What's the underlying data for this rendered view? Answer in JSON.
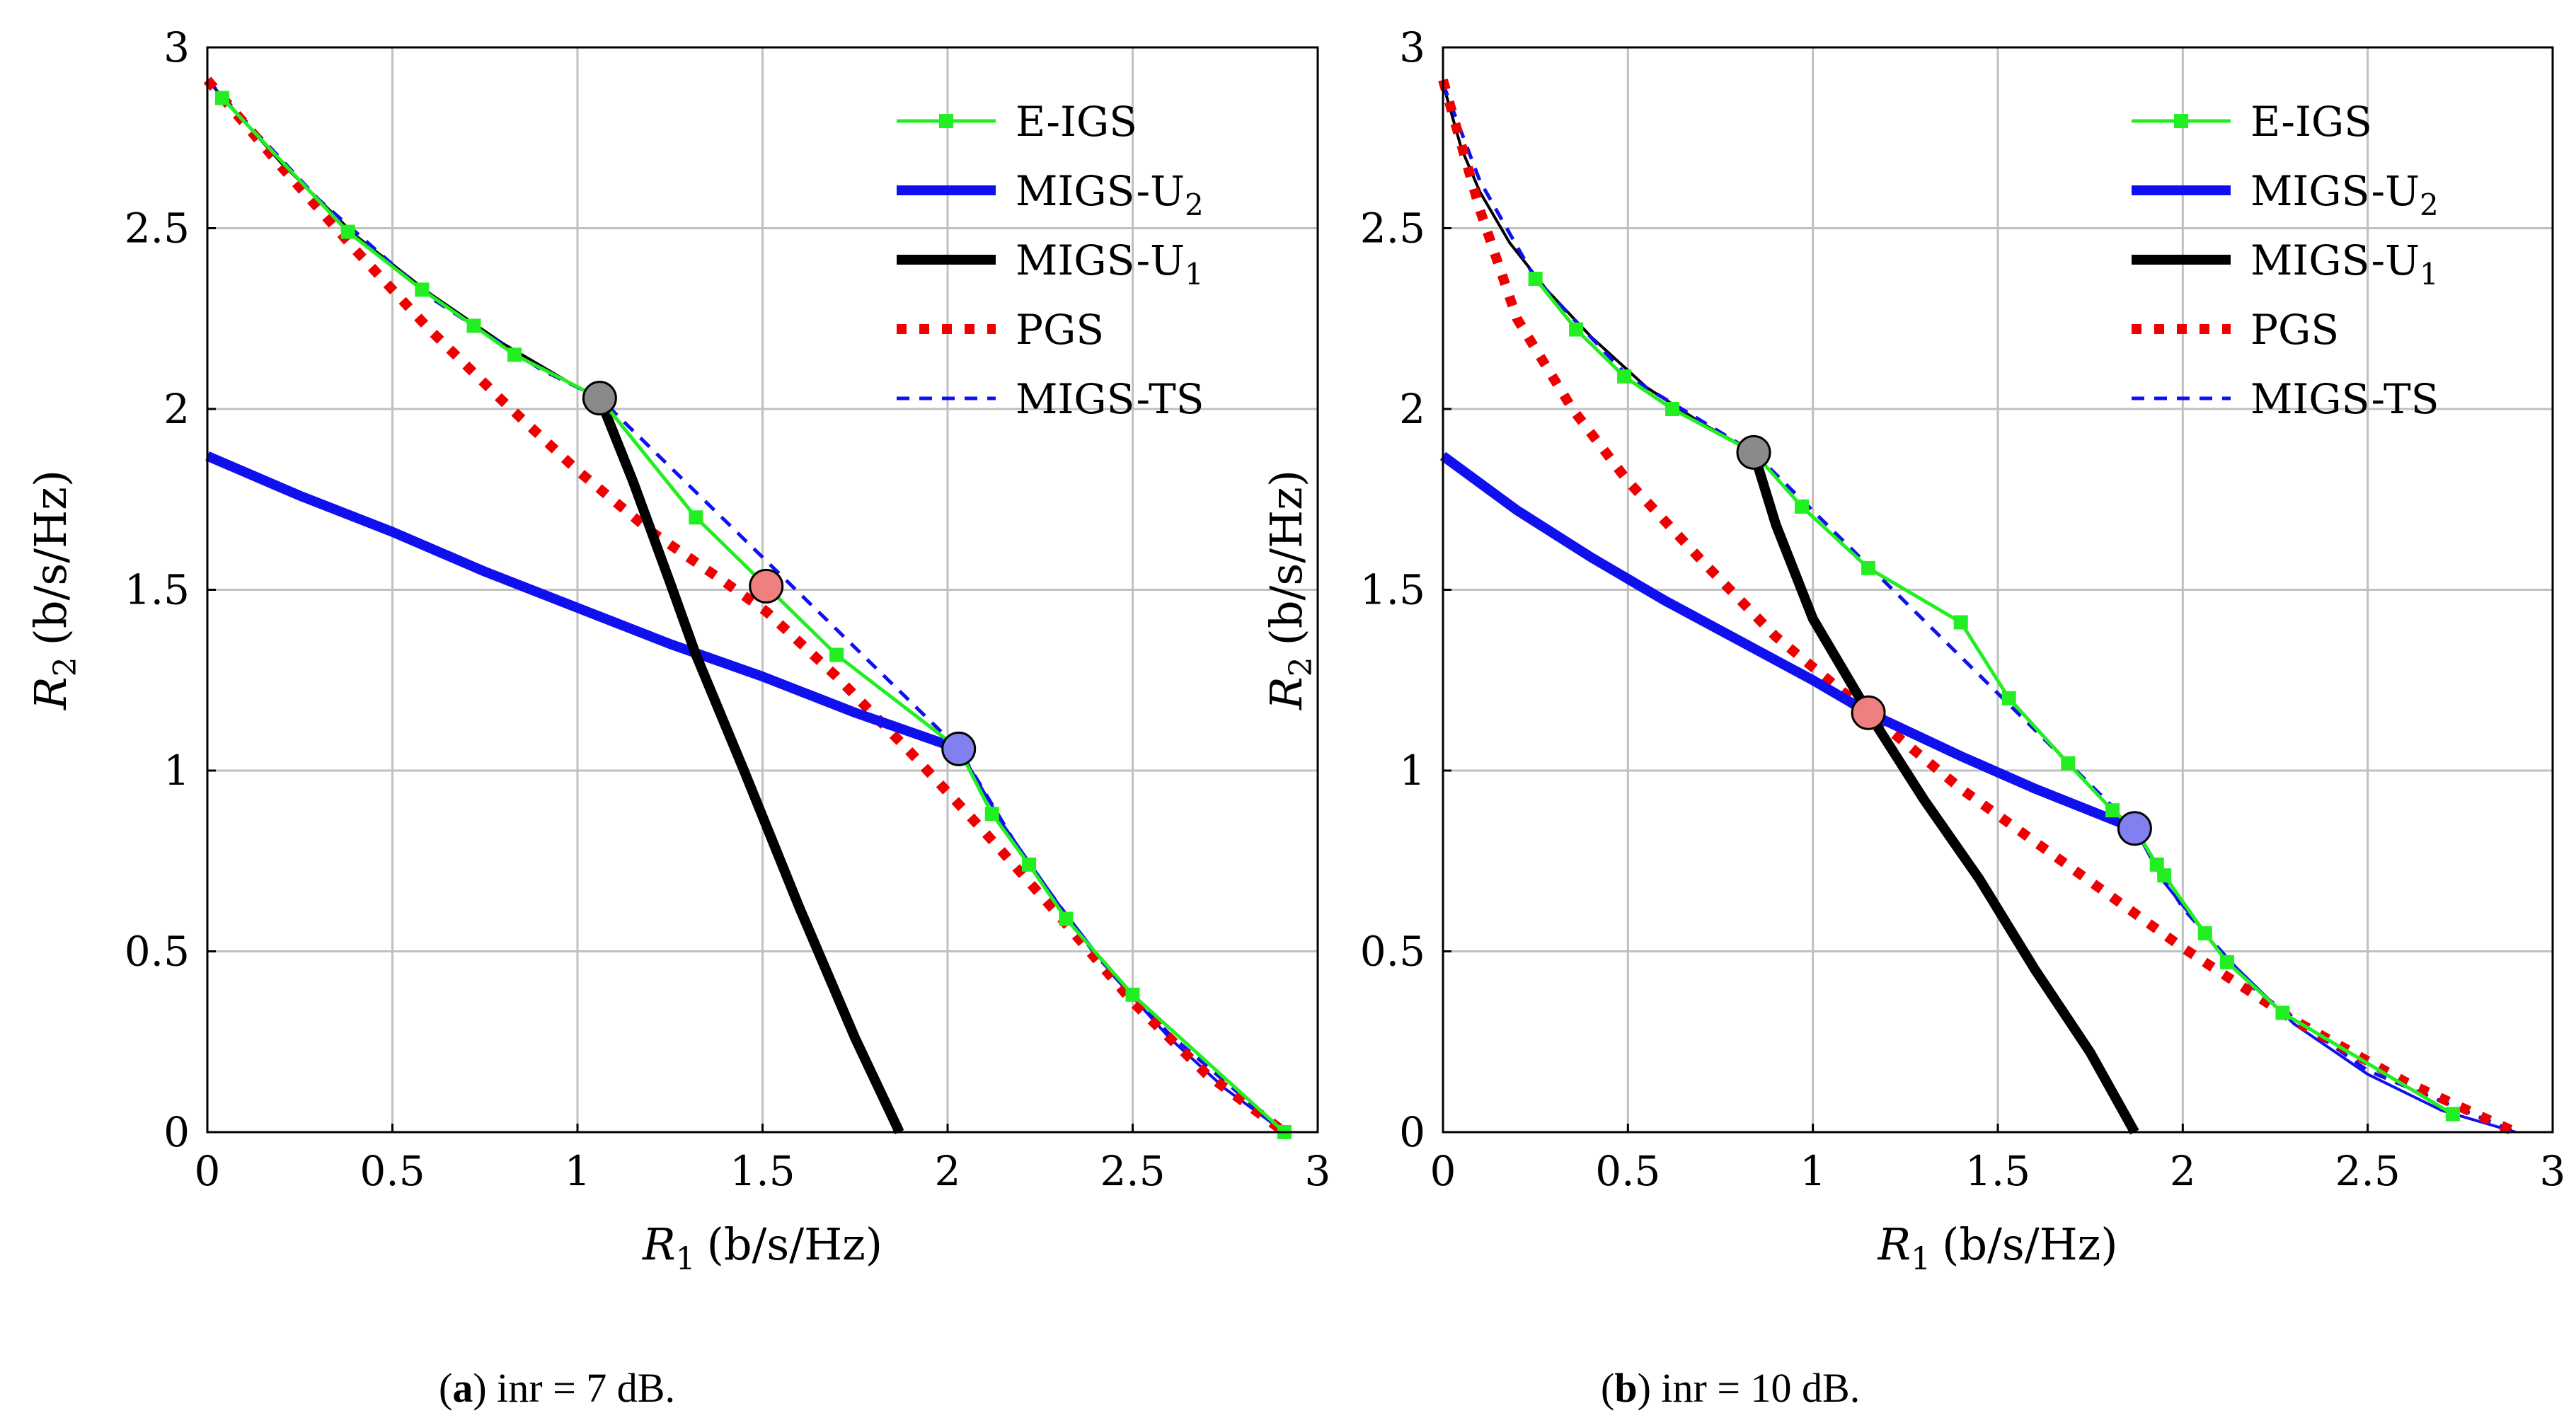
{
  "chart_data": [
    {
      "type": "line",
      "panel_label": "a",
      "caption": "inr = 7 dB.",
      "xlabel_main": "R",
      "xlabel_sub": "1",
      "xlabel_unit": "(b/s/Hz)",
      "ylabel_main": "R",
      "ylabel_sub": "2",
      "ylabel_unit": "(b/s/Hz)",
      "xlim": [
        0,
        3
      ],
      "ylim": [
        0,
        3
      ],
      "xticks": [
        0,
        0.5,
        1,
        1.5,
        2,
        2.5,
        3
      ],
      "yticks": [
        0,
        0.5,
        1,
        1.5,
        2,
        2.5,
        3
      ],
      "xtick_labels": [
        "0",
        "0.5",
        "1",
        "1.5",
        "2",
        "2.5",
        "3"
      ],
      "ytick_labels": [
        "0",
        "0.5",
        "1",
        "1.5",
        "2",
        "2.5",
        "3"
      ],
      "grid": true,
      "legend_position": "top-right",
      "series": [
        {
          "name": "E-IGS",
          "label_main": "E-IGS",
          "label_sub": "",
          "color": "#22ee22",
          "style": "line-square-markers",
          "x": [
            0.04,
            0.38,
            0.58,
            0.72,
            0.83,
            1.06,
            1.32,
            1.7,
            2.03,
            2.12,
            2.22,
            2.32,
            2.5,
            2.91
          ],
          "y": [
            2.86,
            2.49,
            2.33,
            2.23,
            2.15,
            2.03,
            1.7,
            1.32,
            1.06,
            0.88,
            0.74,
            0.59,
            0.38,
            0.0
          ]
        },
        {
          "name": "MIGS-U2",
          "label_main": "MIGS-U",
          "label_sub": "2",
          "color": "#1010ee",
          "style": "thick",
          "x": [
            0,
            0.25,
            0.5,
            0.75,
            1.0,
            1.25,
            1.5,
            1.75,
            2.03
          ],
          "y": [
            1.87,
            1.76,
            1.66,
            1.55,
            1.45,
            1.35,
            1.26,
            1.16,
            1.06
          ]
        },
        {
          "name": "MIGS-U1",
          "label_main": "MIGS-U",
          "label_sub": "1",
          "color": "#000000",
          "style": "thick",
          "x": [
            1.06,
            1.15,
            1.25,
            1.32,
            1.45,
            1.6,
            1.75,
            1.87
          ],
          "y": [
            2.03,
            1.8,
            1.52,
            1.32,
            1.0,
            0.62,
            0.26,
            0.0
          ]
        },
        {
          "name": "PGS",
          "label_main": "PGS",
          "label_sub": "",
          "color": "#ee0000",
          "style": "thick-dotted",
          "x": [
            0,
            0.2,
            0.4,
            0.6,
            0.8,
            1.0,
            1.2,
            1.4,
            1.51,
            1.7,
            1.9,
            2.1,
            2.3,
            2.5,
            2.7,
            2.91
          ],
          "y": [
            2.91,
            2.67,
            2.44,
            2.22,
            2.02,
            1.83,
            1.66,
            1.52,
            1.44,
            1.26,
            1.05,
            0.83,
            0.6,
            0.36,
            0.16,
            0.0
          ]
        },
        {
          "name": "MIGS-TS",
          "label_main": "MIGS-TS",
          "label_sub": "",
          "color": "#1010ee",
          "style": "dashed",
          "x": [
            0,
            0.3,
            0.6,
            0.9,
            1.06,
            2.03,
            2.2,
            2.4,
            2.6,
            2.91
          ],
          "y": [
            2.91,
            2.58,
            2.31,
            2.11,
            2.03,
            1.06,
            0.77,
            0.49,
            0.27,
            0.0
          ]
        },
        {
          "name": "MIGS-U1-upper",
          "label_main": "",
          "label_sub": "",
          "color": "#000000",
          "style": "boundary",
          "legend": false,
          "x": [
            0,
            0.2,
            0.4,
            0.6,
            0.8,
            1.0,
            1.06
          ],
          "y": [
            2.91,
            2.68,
            2.48,
            2.32,
            2.18,
            2.06,
            2.03
          ]
        },
        {
          "name": "MIGS-U2-lower",
          "label_main": "",
          "label_sub": "",
          "color": "#1010ee",
          "style": "boundary",
          "legend": false,
          "x": [
            2.03,
            2.15,
            2.3,
            2.45,
            2.6,
            2.75,
            2.91
          ],
          "y": [
            1.06,
            0.85,
            0.63,
            0.43,
            0.26,
            0.12,
            0.0
          ]
        }
      ],
      "highlight_points": [
        {
          "name": "MIGS-U1 optimum",
          "x": 1.06,
          "y": 2.03,
          "color": "#8a8a8a"
        },
        {
          "name": "PGS optimum",
          "x": 1.51,
          "y": 1.51,
          "color": "#f08080"
        },
        {
          "name": "MIGS-U2 optimum",
          "x": 2.03,
          "y": 1.06,
          "color": "#8080f0"
        }
      ]
    },
    {
      "type": "line",
      "panel_label": "b",
      "caption": "inr = 10 dB.",
      "xlabel_main": "R",
      "xlabel_sub": "1",
      "xlabel_unit": "(b/s/Hz)",
      "ylabel_main": "R",
      "ylabel_sub": "2",
      "ylabel_unit": "(b/s/Hz)",
      "xlim": [
        0,
        3
      ],
      "ylim": [
        0,
        3
      ],
      "xticks": [
        0,
        0.5,
        1,
        1.5,
        2,
        2.5,
        3
      ],
      "yticks": [
        0,
        0.5,
        1,
        1.5,
        2,
        2.5,
        3
      ],
      "xtick_labels": [
        "0",
        "0.5",
        "1",
        "1.5",
        "2",
        "2.5",
        "3"
      ],
      "ytick_labels": [
        "0",
        "0.5",
        "1",
        "1.5",
        "2",
        "2.5",
        "3"
      ],
      "grid": true,
      "legend_position": "top-right",
      "series": [
        {
          "name": "E-IGS",
          "label_main": "E-IGS",
          "label_sub": "",
          "color": "#22ee22",
          "style": "line-square-markers",
          "x": [
            0.25,
            0.36,
            0.49,
            0.62,
            0.84,
            0.97,
            1.15,
            1.4,
            1.53,
            1.69,
            1.81,
            1.87,
            1.93,
            1.95,
            2.06,
            2.12,
            2.27,
            2.73
          ],
          "y": [
            2.36,
            2.22,
            2.09,
            2.0,
            1.88,
            1.73,
            1.56,
            1.41,
            1.2,
            1.02,
            0.89,
            0.84,
            0.74,
            0.71,
            0.55,
            0.47,
            0.33,
            0.05
          ]
        },
        {
          "name": "MIGS-U2",
          "label_main": "MIGS-U",
          "label_sub": "2",
          "color": "#1010ee",
          "style": "thick",
          "x": [
            0,
            0.2,
            0.4,
            0.6,
            0.8,
            1.0,
            1.15,
            1.4,
            1.6,
            1.87
          ],
          "y": [
            1.87,
            1.72,
            1.59,
            1.47,
            1.36,
            1.25,
            1.16,
            1.04,
            0.95,
            0.84
          ]
        },
        {
          "name": "MIGS-U1",
          "label_main": "MIGS-U",
          "label_sub": "1",
          "color": "#000000",
          "style": "thick",
          "x": [
            0.84,
            0.9,
            1.0,
            1.15,
            1.3,
            1.45,
            1.6,
            1.75,
            1.87
          ],
          "y": [
            1.88,
            1.68,
            1.42,
            1.16,
            0.92,
            0.7,
            0.45,
            0.22,
            0.0
          ]
        },
        {
          "name": "PGS",
          "label_main": "PGS",
          "label_sub": "",
          "color": "#ee0000",
          "style": "thick-dotted",
          "x": [
            0,
            0.1,
            0.2,
            0.35,
            0.5,
            0.7,
            0.9,
            1.15,
            1.4,
            1.7,
            2.0,
            2.3,
            2.6,
            2.9
          ],
          "y": [
            2.91,
            2.55,
            2.25,
            2.0,
            1.8,
            1.58,
            1.37,
            1.16,
            0.95,
            0.73,
            0.51,
            0.31,
            0.14,
            0.0
          ]
        },
        {
          "name": "MIGS-TS",
          "label_main": "MIGS-TS",
          "label_sub": "",
          "color": "#1010ee",
          "style": "dashed",
          "x": [
            0,
            0.1,
            0.25,
            0.5,
            0.84,
            1.87,
            2.0,
            2.2,
            2.5,
            2.9
          ],
          "y": [
            2.9,
            2.63,
            2.36,
            2.09,
            1.88,
            0.84,
            0.62,
            0.39,
            0.17,
            0.0
          ]
        },
        {
          "name": "MIGS-U1-upper",
          "label_main": "",
          "label_sub": "",
          "color": "#000000",
          "style": "boundary",
          "legend": false,
          "x": [
            0,
            0.05,
            0.1,
            0.18,
            0.28,
            0.4,
            0.55,
            0.7,
            0.84
          ],
          "y": [
            2.9,
            2.72,
            2.6,
            2.46,
            2.33,
            2.2,
            2.06,
            1.96,
            1.88
          ]
        },
        {
          "name": "MIGS-U2-lower",
          "label_main": "",
          "label_sub": "",
          "color": "#1010ee",
          "style": "boundary",
          "legend": false,
          "x": [
            1.87,
            1.95,
            2.1,
            2.3,
            2.5,
            2.7,
            2.9
          ],
          "y": [
            0.84,
            0.69,
            0.5,
            0.3,
            0.16,
            0.06,
            0.0
          ]
        }
      ],
      "highlight_points": [
        {
          "name": "MIGS-U1 optimum",
          "x": 0.84,
          "y": 1.88,
          "color": "#8a8a8a"
        },
        {
          "name": "PGS optimum",
          "x": 1.15,
          "y": 1.16,
          "color": "#f08080"
        },
        {
          "name": "MIGS-U2 optimum",
          "x": 1.87,
          "y": 0.84,
          "color": "#8080f0"
        }
      ]
    }
  ]
}
